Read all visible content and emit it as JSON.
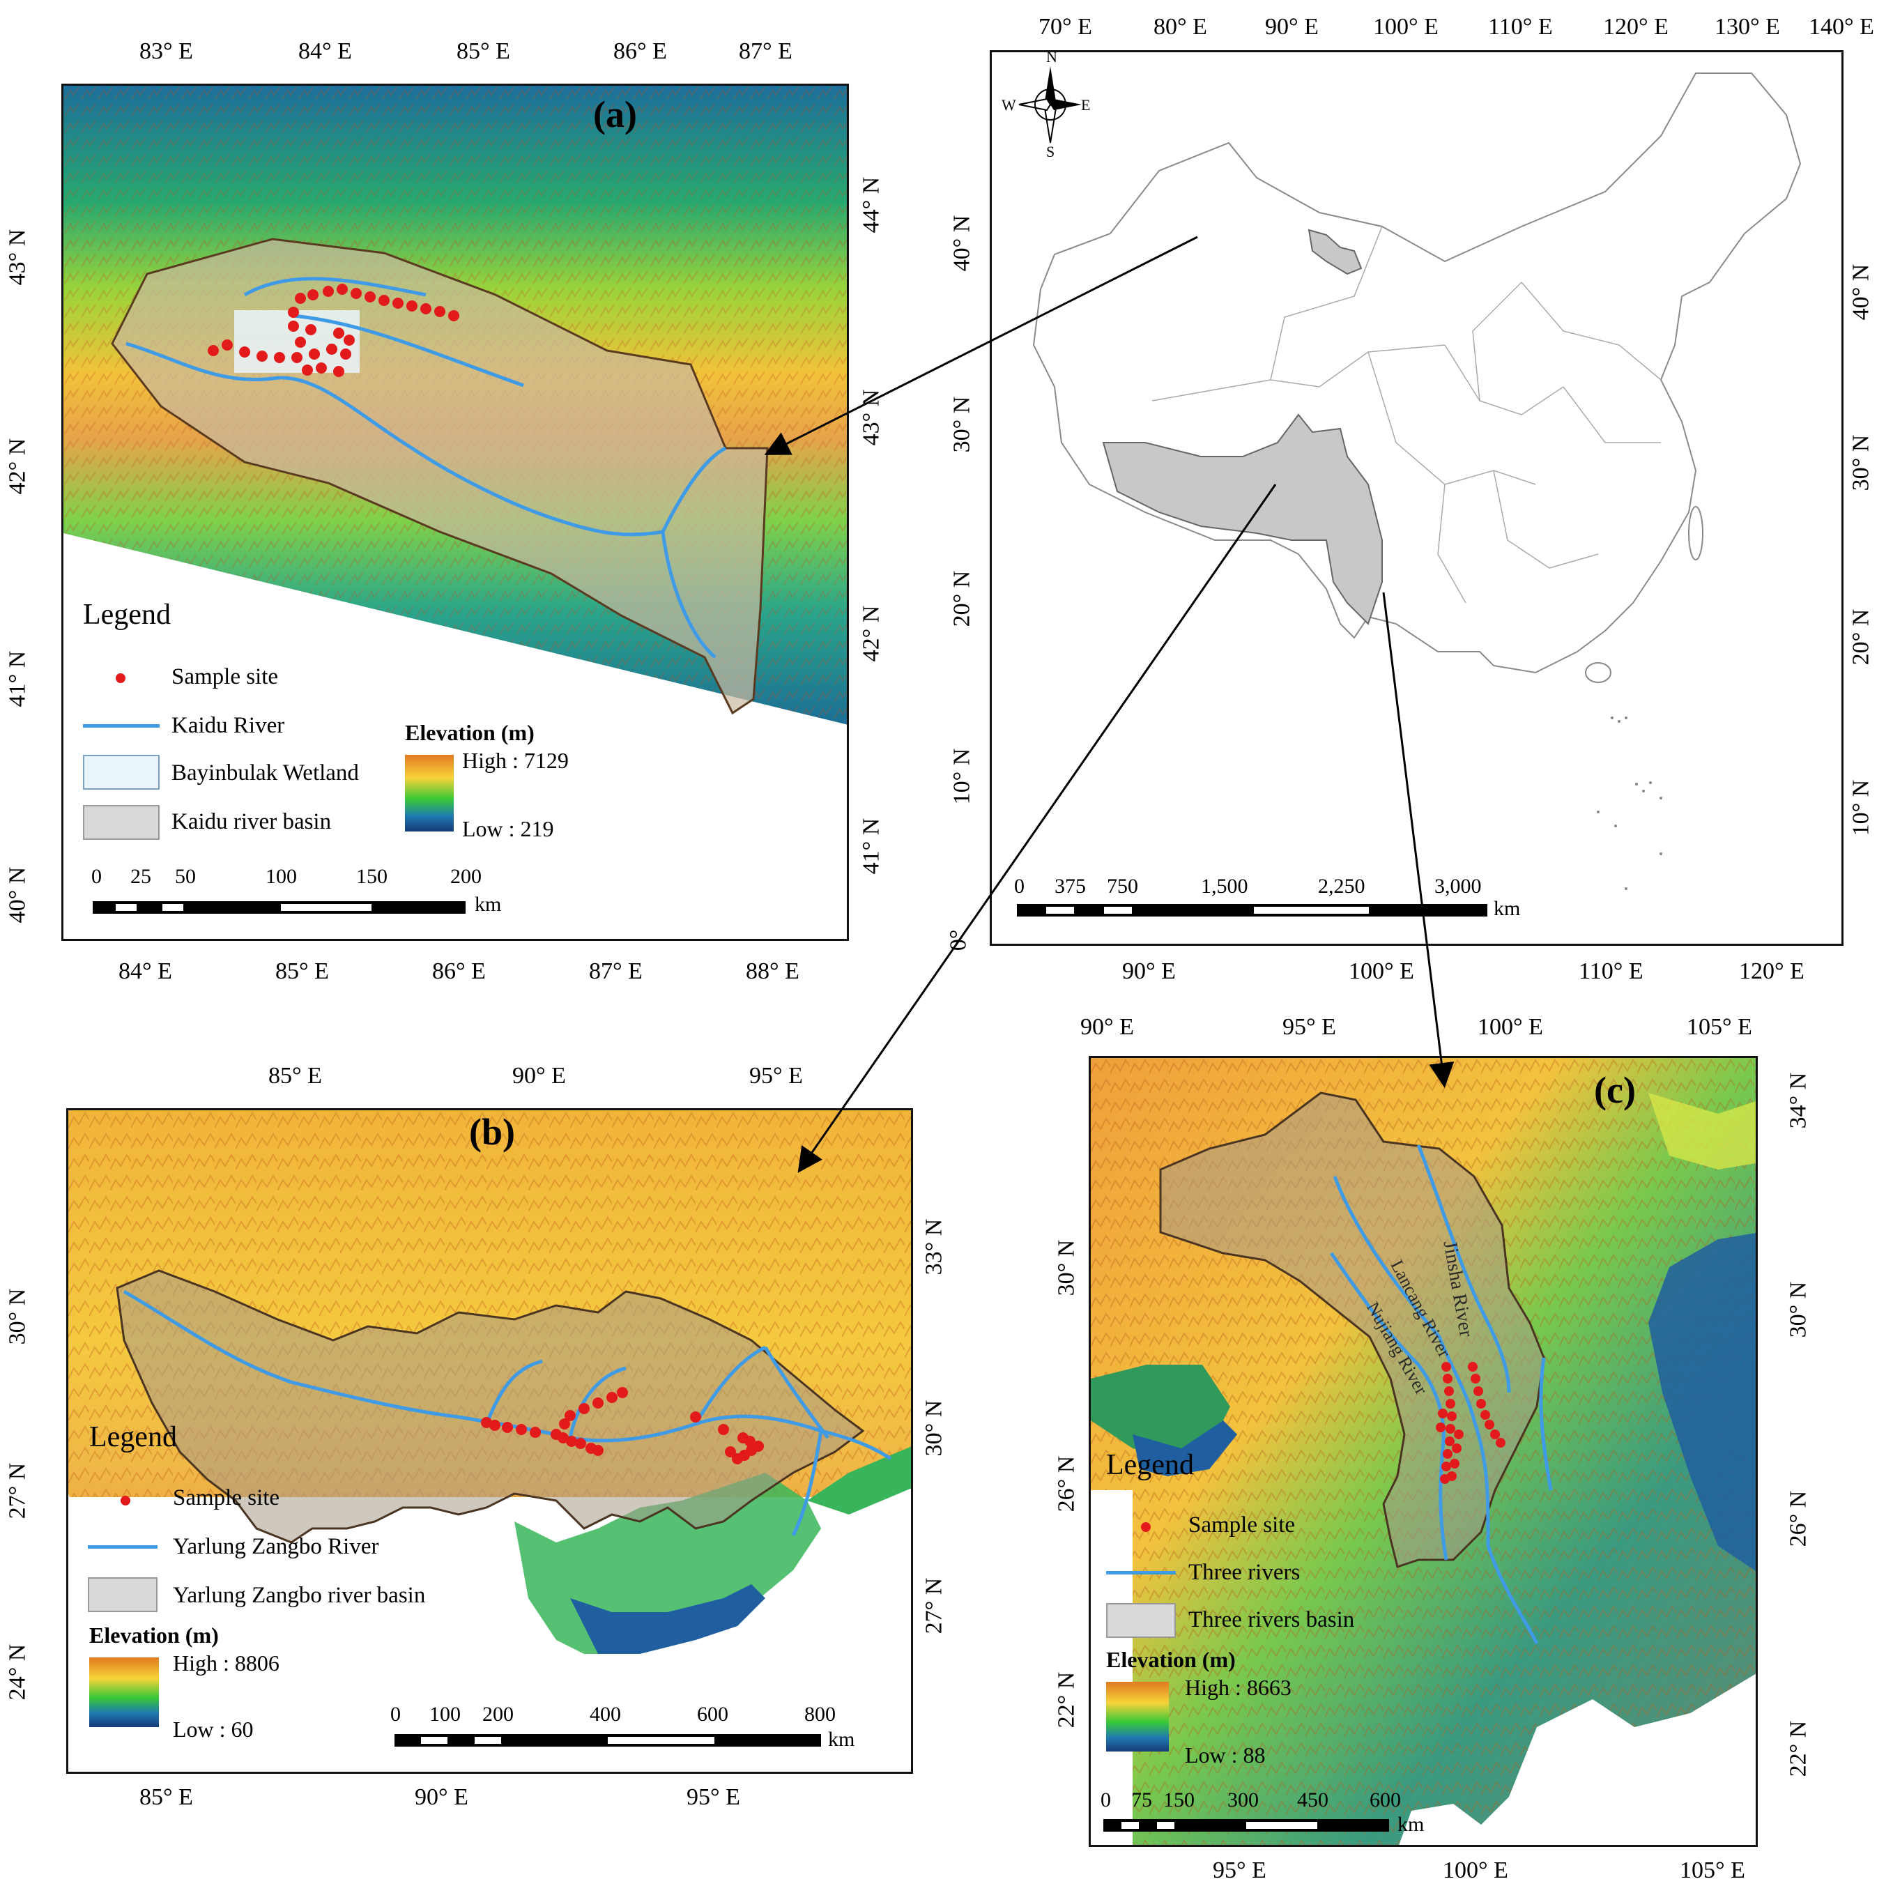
{
  "panel_a": {
    "label": "(a)",
    "top_ticks": [
      "83° E",
      "84° E",
      "85° E",
      "86° E",
      "87° E"
    ],
    "bottom_ticks": [
      "84° E",
      "85° E",
      "86° E",
      "87° E",
      "88° E"
    ],
    "left_ticks": [
      "43° N",
      "42° N",
      "41° N",
      "40° N"
    ],
    "right_ticks": [
      "44° N",
      "43° N",
      "42° N",
      "41° N"
    ],
    "legend": {
      "title": "Legend",
      "sample_site": "Sample site",
      "river": "Kaidu River",
      "wetland": "Bayinbulak Wetland",
      "basin": "Kaidu river basin"
    },
    "elevation": {
      "title": "Elevation (m)",
      "high": "High : 7129",
      "low": "Low : 219"
    },
    "scale": {
      "labels": [
        "0",
        "25",
        "50",
        "100",
        "150",
        "200"
      ],
      "unit": "km"
    }
  },
  "panel_china": {
    "top_ticks": [
      "70° E",
      "80° E",
      "90° E",
      "100° E",
      "110° E",
      "120° E",
      "130° E",
      "140° E"
    ],
    "bottom_ticks": [
      "90° E",
      "100° E",
      "110° E",
      "120° E"
    ],
    "left_ticks": [
      "40° N",
      "30° N",
      "20° N",
      "10° N",
      "0°"
    ],
    "right_ticks": [
      "40° N",
      "30° N",
      "20° N",
      "10° N"
    ],
    "compass": {
      "n": "N",
      "s": "S",
      "e": "E",
      "w": "W"
    },
    "scale": {
      "labels": [
        "0",
        "375",
        "750",
        "1,500",
        "2,250",
        "3,000"
      ],
      "unit": "km"
    }
  },
  "panel_b": {
    "label": "(b)",
    "top_ticks": [
      "85° E",
      "90° E",
      "95° E"
    ],
    "bottom_ticks": [
      "85° E",
      "90° E",
      "95° E"
    ],
    "left_ticks": [
      "30° N",
      "27° N",
      "24° N"
    ],
    "right_ticks": [
      "33° N",
      "30° N",
      "27° N"
    ],
    "legend": {
      "title": "Legend",
      "sample_site": "Sample site",
      "river": "Yarlung Zangbo River",
      "basin": "Yarlung Zangbo river basin"
    },
    "elevation": {
      "title": "Elevation (m)",
      "high": "High : 8806",
      "low": "Low : 60"
    },
    "scale": {
      "labels": [
        "0",
        "100",
        "200",
        "400",
        "600",
        "800"
      ],
      "unit": "km"
    }
  },
  "panel_c": {
    "label": "(c)",
    "top_ticks": [
      "90° E",
      "95° E",
      "100° E",
      "105° E"
    ],
    "bottom_ticks": [
      "95° E",
      "100° E",
      "105° E"
    ],
    "left_ticks": [
      "30° N",
      "26° N",
      "22° N"
    ],
    "right_ticks": [
      "34° N",
      "30° N",
      "26° N",
      "22° N"
    ],
    "river_names": [
      "Jinsha River",
      "Lancang River",
      "Nujiang River"
    ],
    "legend": {
      "title": "Legend",
      "sample_site": "Sample site",
      "river": "Three rivers",
      "basin": "Three rivers basin"
    },
    "elevation": {
      "title": "Elevation (m)",
      "high": "High : 8663",
      "low": "Low : 88"
    },
    "scale": {
      "labels": [
        "0",
        "75",
        "150",
        "300",
        "450",
        "600"
      ],
      "unit": "km"
    }
  }
}
